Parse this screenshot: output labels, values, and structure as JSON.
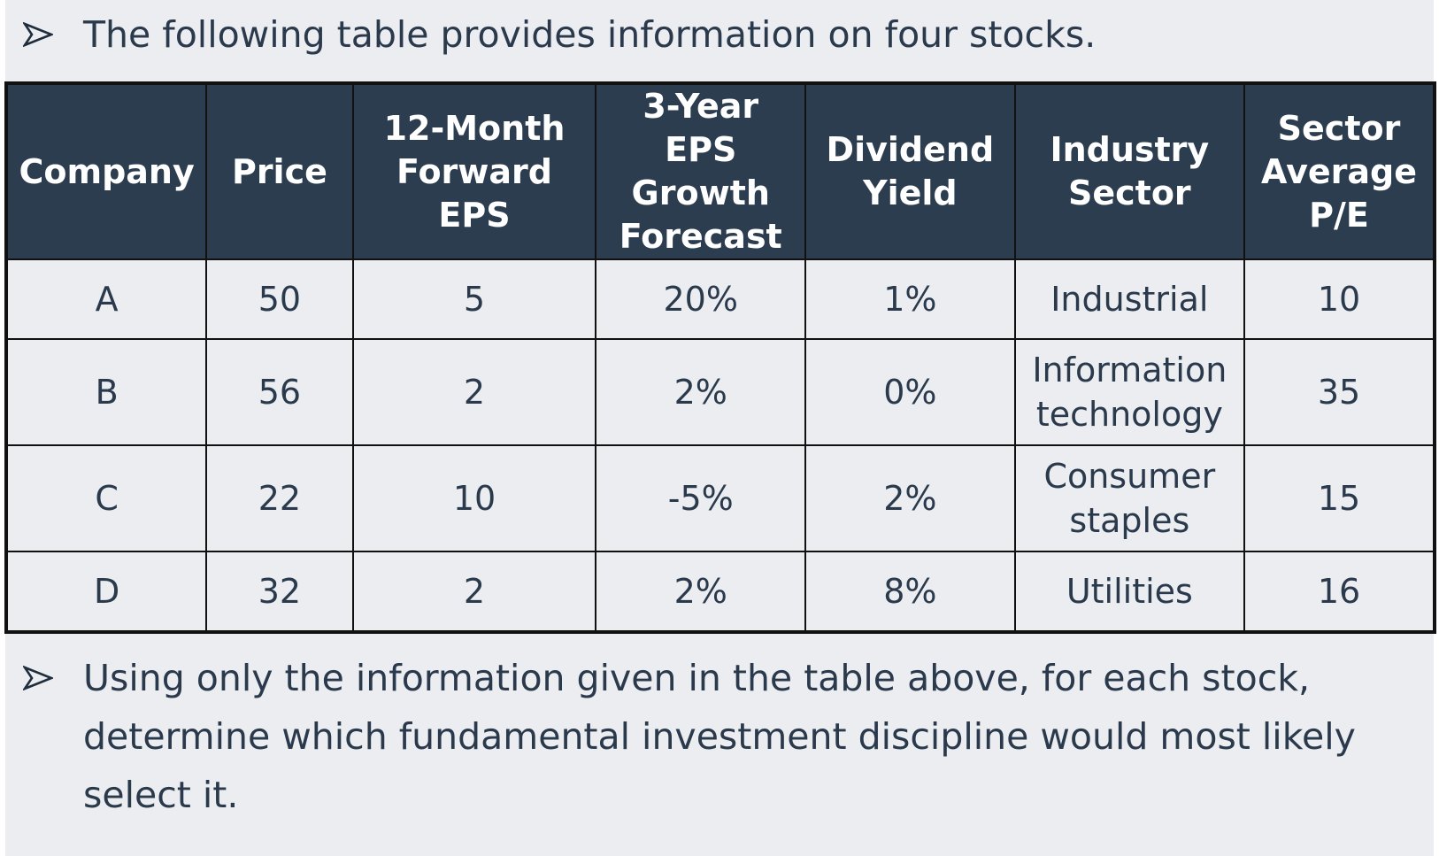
{
  "intro": {
    "icon": "arrow-bullet-icon",
    "text": "The following table provides information on four stocks."
  },
  "table": {
    "headers": [
      "Company",
      "Price",
      "12-Month Forward EPS",
      "3-Year EPS Growth Forecast",
      "Dividend Yield",
      "Industry Sector",
      "Sector Average P/E"
    ],
    "rows": [
      [
        "A",
        "50",
        "5",
        "20%",
        "1%",
        "Industrial",
        "10"
      ],
      [
        "B",
        "56",
        "2",
        "2%",
        "0%",
        "Information technology",
        "35"
      ],
      [
        "C",
        "22",
        "10",
        "-5%",
        "2%",
        "Consumer staples",
        "15"
      ],
      [
        "D",
        "32",
        "2",
        "2%",
        "8%",
        "Utilities",
        "16"
      ]
    ]
  },
  "question": {
    "icon": "arrow-bullet-icon",
    "text": "Using only the information given in the table above, for each stock, determine which fundamental investment discipline would most likely select it."
  },
  "colors": {
    "header_bg": "#2c3d50",
    "header_text": "#ffffff",
    "body_bg": "#ebedf0",
    "text": "#2a3a4c",
    "border": "#111111"
  }
}
